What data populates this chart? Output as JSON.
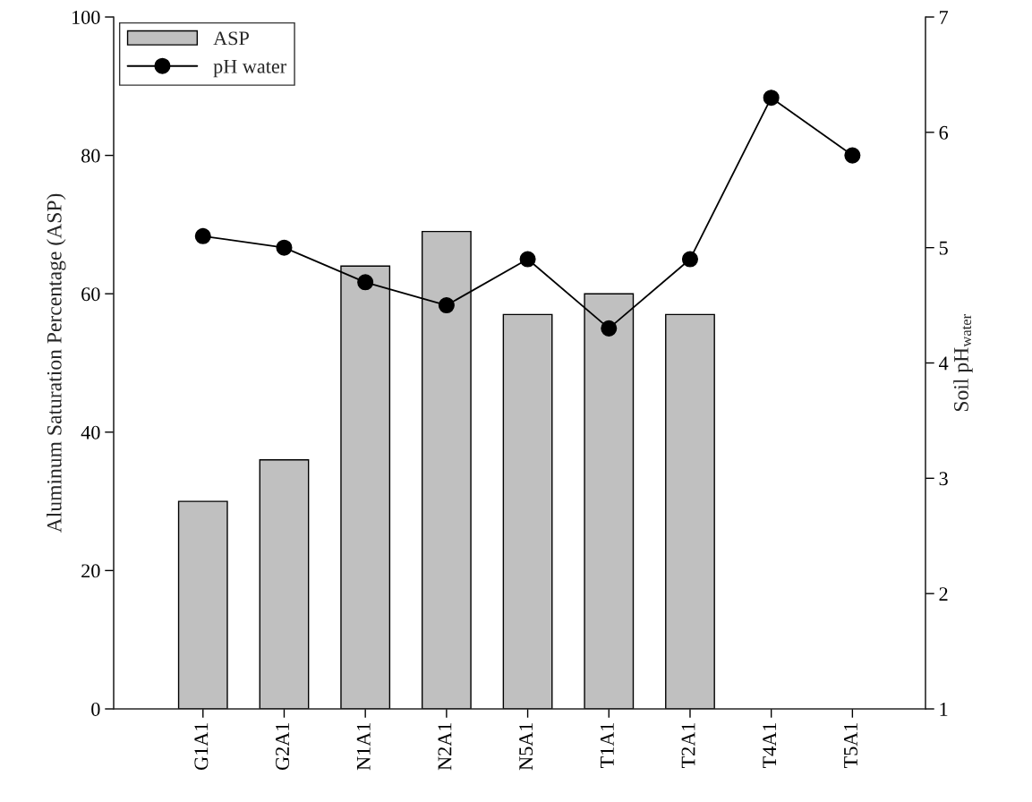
{
  "chart_data": {
    "type": "bar",
    "categories": [
      "G1A1",
      "G2A1",
      "N1A1",
      "N2A1",
      "N5A1",
      "T1A1",
      "T2A1",
      "T4A1",
      "T5A1"
    ],
    "series": [
      {
        "name": "ASP",
        "color": "#c0c0c0",
        "values": [
          30,
          36,
          64,
          69,
          57,
          60,
          57,
          null,
          null
        ]
      },
      {
        "name": "pH water",
        "type": "line",
        "axis": "y2",
        "color": "#000000",
        "marker": "circle",
        "values": [
          5.1,
          5.0,
          4.7,
          4.5,
          4.9,
          4.3,
          4.9,
          6.3,
          5.8
        ]
      }
    ],
    "ylabel": "Aluminum Saturation Percentage (ASP)",
    "y2label": "Soil pH$_{water}$",
    "ylim": [
      0,
      100
    ],
    "yticks": [
      0,
      20,
      40,
      60,
      80,
      100
    ],
    "y2lim": [
      1,
      7
    ],
    "y2ticks": [
      1,
      2,
      3,
      4,
      5,
      6,
      7
    ],
    "legend": "top left",
    "grid": false
  }
}
